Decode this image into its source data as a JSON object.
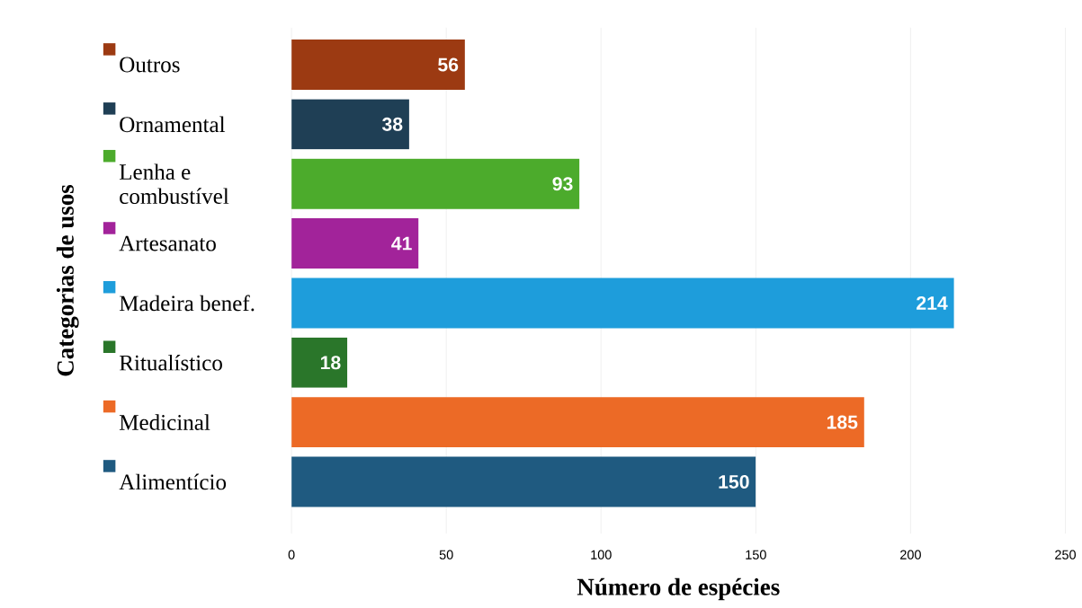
{
  "chart_data": {
    "type": "bar",
    "orientation": "horizontal",
    "xlabel": "Número de espécies",
    "ylabel": "Categorias de usos",
    "categories": [
      "Outros",
      "Ornamental",
      "Lenha e combustível",
      "Artesanato",
      "Madeira benef.",
      "Ritualístico",
      "Medicinal",
      "Alimentício"
    ],
    "values": [
      56,
      38,
      93,
      41,
      214,
      18,
      185,
      150
    ],
    "colors": [
      "#9c3a12",
      "#1f3f55",
      "#4cab2c",
      "#a2239a",
      "#1e9ddb",
      "#2a762a",
      "#ec6a26",
      "#1f5a80"
    ],
    "xlim": [
      0,
      250
    ],
    "xticks": [
      0,
      50,
      100,
      150,
      200,
      250
    ],
    "grid": "x",
    "data_labels": true
  }
}
